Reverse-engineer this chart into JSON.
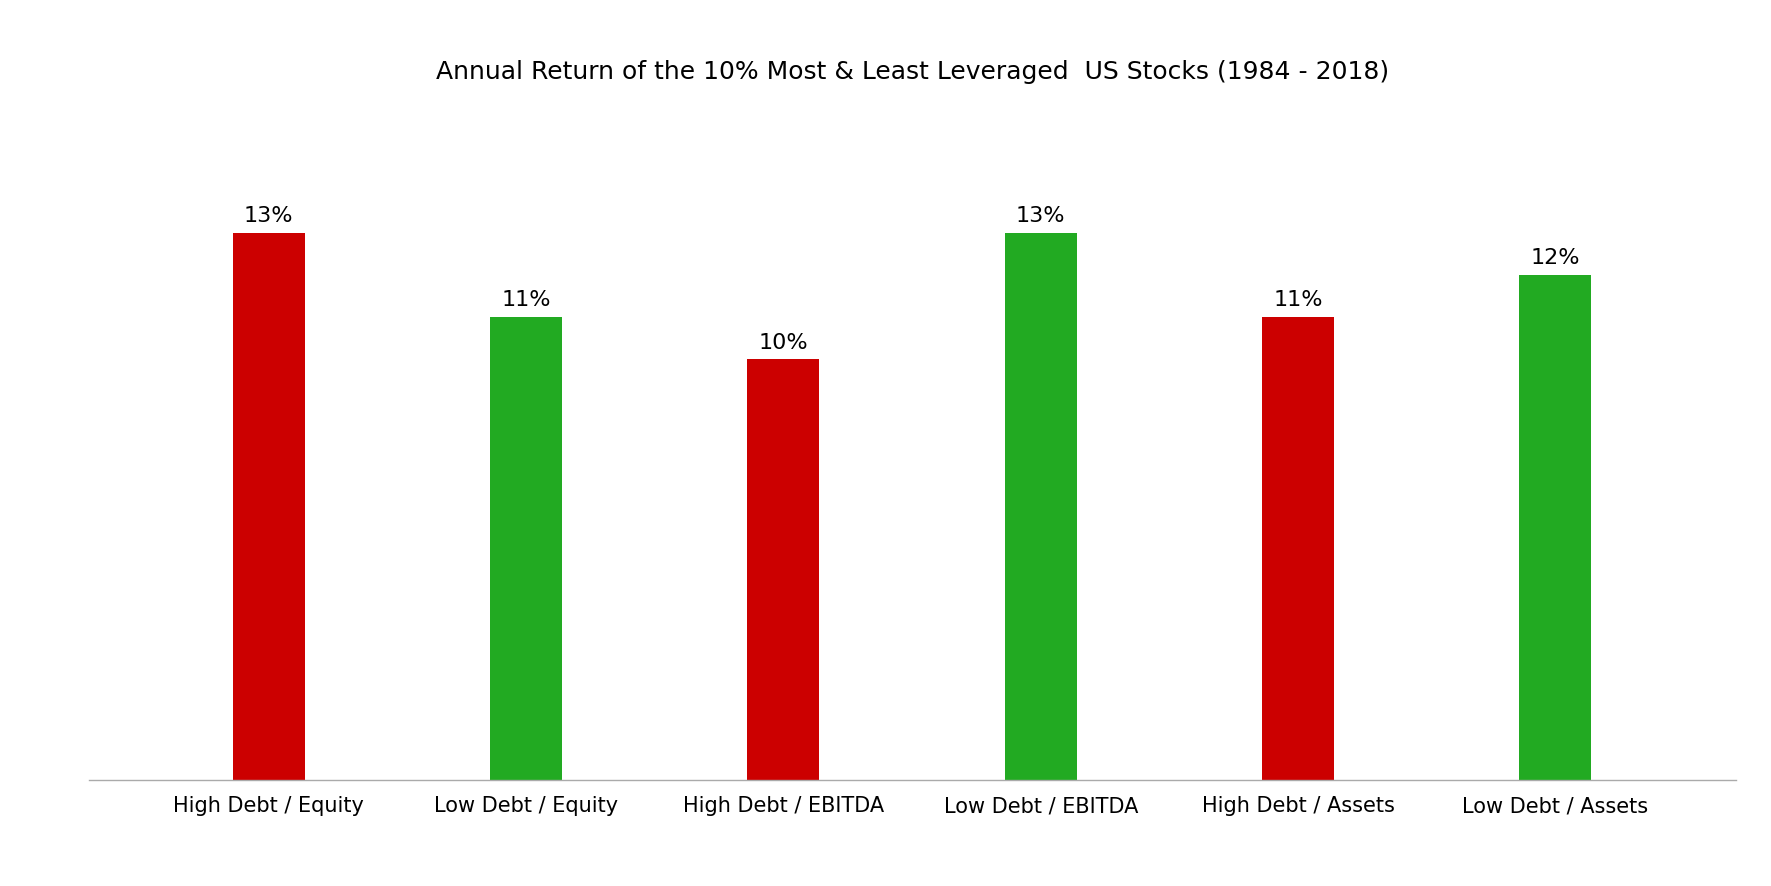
{
  "title": "Annual Return of the 10% Most & Least Leveraged  US Stocks (1984 - 2018)",
  "categories": [
    "High Debt / Equity",
    "Low Debt / Equity",
    "High Debt / EBITDA",
    "Low Debt / EBITDA",
    "High Debt / Assets",
    "Low Debt / Assets"
  ],
  "values": [
    13,
    11,
    10,
    13,
    11,
    12
  ],
  "bar_colors": [
    "#cc0000",
    "#22aa22",
    "#cc0000",
    "#22aa22",
    "#cc0000",
    "#22aa22"
  ],
  "background_color": "#ffffff",
  "title_fontsize": 18,
  "label_fontsize": 16,
  "tick_fontsize": 15,
  "ylim": [
    0,
    16
  ],
  "bar_width": 0.28,
  "figsize": [
    17.71,
    8.86
  ]
}
